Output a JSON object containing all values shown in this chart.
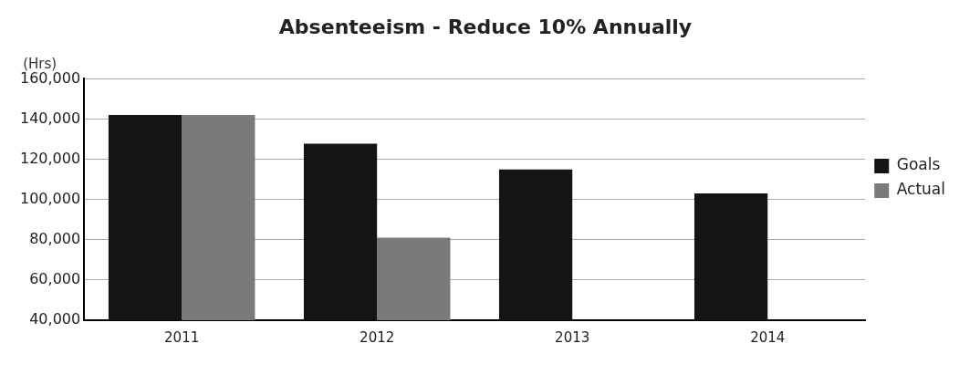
{
  "chart_data": {
    "type": "bar",
    "title": "Absenteeism - Reduce 10% Annually",
    "ylabel": "(Hrs)",
    "categories": [
      "2011",
      "2012",
      "2013",
      "2014"
    ],
    "series": [
      {
        "name": "Goals",
        "color": "#141414",
        "values": [
          142000,
          127800,
          115000,
          103000
        ]
      },
      {
        "name": "Actual",
        "color": "#7a7a7a",
        "values": [
          142000,
          81000,
          null,
          null
        ]
      }
    ],
    "ylim": [
      40000,
      160000
    ],
    "yticks": [
      {
        "value": 40000,
        "label": "40,000"
      },
      {
        "value": 60000,
        "label": "60,000"
      },
      {
        "value": 80000,
        "label": "80,000"
      },
      {
        "value": 100000,
        "label": "100,000"
      },
      {
        "value": 120000,
        "label": "120,000"
      },
      {
        "value": 140000,
        "label": "140,000"
      },
      {
        "value": 160000,
        "label": "160,000"
      }
    ],
    "grid": "y",
    "legend": "right"
  }
}
